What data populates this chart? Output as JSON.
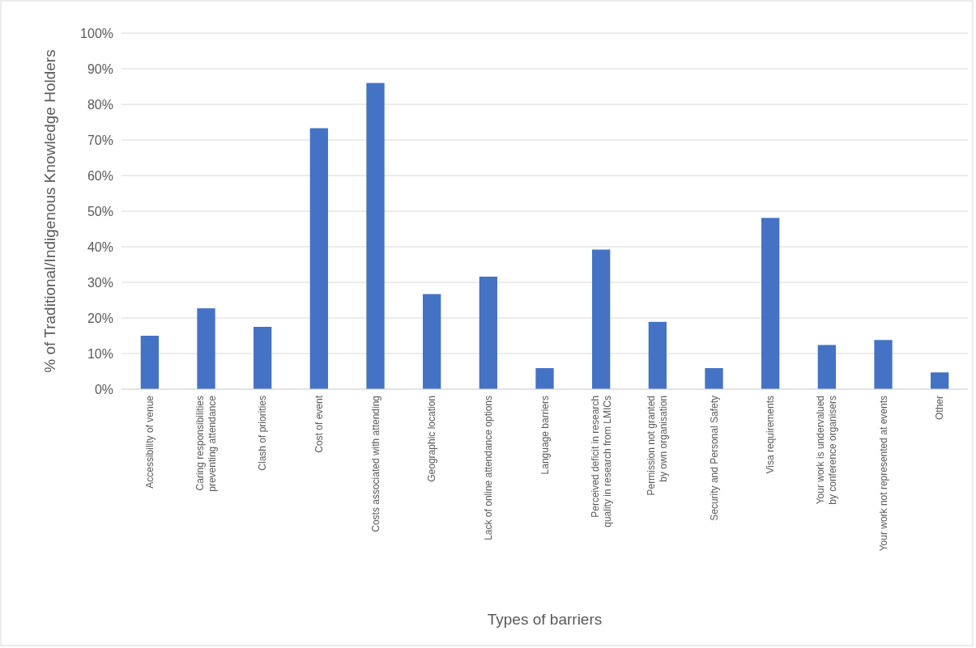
{
  "chart_data": {
    "type": "bar",
    "xlabel": "Types of barriers",
    "ylabel": "% of Traditional/Indigenous Knowledge Holders",
    "categories": [
      "Accessibility of venue",
      "Caring responsibilities preventing attendance",
      "Clash of priorities",
      "Cost of event",
      "Costs associated with attending",
      "Geographic location",
      "Lack of online attendance options",
      "Language barriers",
      "Perceived deficit in research quality in research from LMICs",
      "Permission not granted by own organisation",
      "Security and Personal Safety",
      "Visa requirements",
      "Your work is undervalued by conference organisers",
      "Your work not represented at events",
      "Other"
    ],
    "values": [
      15.0,
      22.7,
      17.5,
      73.3,
      86.0,
      26.7,
      31.6,
      5.9,
      39.2,
      18.9,
      5.9,
      48.1,
      12.4,
      13.8,
      4.7
    ],
    "color": "#4472c4",
    "ylim": [
      0,
      100
    ],
    "yticks": [
      {
        "value": 0,
        "label": "0%"
      },
      {
        "value": 10,
        "label": "10%"
      },
      {
        "value": 20,
        "label": "20%"
      },
      {
        "value": 30,
        "label": "30%"
      },
      {
        "value": 40,
        "label": "40%"
      },
      {
        "value": 50,
        "label": "50%"
      },
      {
        "value": 60,
        "label": "60%"
      },
      {
        "value": 70,
        "label": "70%"
      },
      {
        "value": 80,
        "label": "80%"
      },
      {
        "value": 90,
        "label": "90%"
      },
      {
        "value": 100,
        "label": "100%"
      }
    ],
    "grid": "y"
  }
}
